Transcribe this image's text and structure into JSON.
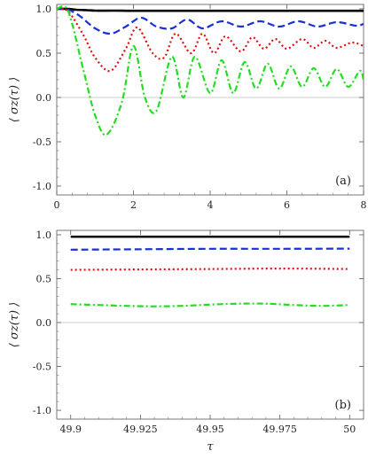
{
  "chart_data": [
    {
      "panel_label": "(a)",
      "type": "line",
      "ylabel": "⟨ σz(τ) ⟩",
      "xlabel": "",
      "xlim": [
        0,
        8
      ],
      "ylim": [
        -1.1,
        1.05
      ],
      "xticks": [
        0,
        2,
        4,
        6,
        8
      ],
      "xtick_labels": [
        "0",
        "2",
        "4",
        "6",
        "8"
      ],
      "yticks": [
        1.0,
        0.5,
        0.0,
        -0.5,
        -1.0
      ],
      "ytick_labels": [
        "1.0",
        "0.5",
        "0.0",
        "-0.5",
        "-1.0"
      ],
      "baseline_y": 0,
      "series": [
        {
          "color": "#000000",
          "style": "solid",
          "x": [
            0,
            0.3,
            0.5,
            0.8,
            1.0,
            1.5,
            2.0,
            3.0,
            4.0,
            5.0,
            6.0,
            7.0,
            8.0
          ],
          "y": [
            1.0,
            1.0,
            0.99,
            0.985,
            0.98,
            0.98,
            0.978,
            0.978,
            0.978,
            0.978,
            0.978,
            0.978,
            0.978
          ]
        },
        {
          "color": "#1a2fd6",
          "style": "dashed",
          "x": [
            0,
            0.3,
            0.6,
            1.0,
            1.4,
            1.8,
            2.2,
            2.6,
            3.0,
            3.4,
            3.8,
            4.3,
            4.8,
            5.3,
            5.8,
            6.3,
            6.8,
            7.3,
            7.8,
            8.0
          ],
          "y": [
            1.0,
            0.99,
            0.92,
            0.78,
            0.72,
            0.8,
            0.9,
            0.8,
            0.78,
            0.88,
            0.78,
            0.86,
            0.8,
            0.86,
            0.8,
            0.86,
            0.8,
            0.85,
            0.81,
            0.83
          ]
        },
        {
          "color": "#e01010",
          "style": "dotted",
          "x": [
            0,
            0.3,
            0.7,
            1.0,
            1.4,
            1.8,
            2.1,
            2.5,
            2.8,
            3.1,
            3.5,
            3.8,
            4.1,
            4.4,
            4.8,
            5.1,
            5.4,
            5.7,
            6.0,
            6.4,
            6.7,
            7.0,
            7.3,
            7.7,
            8.0
          ],
          "y": [
            1.0,
            0.97,
            0.7,
            0.45,
            0.3,
            0.55,
            0.79,
            0.5,
            0.45,
            0.72,
            0.5,
            0.72,
            0.5,
            0.69,
            0.52,
            0.68,
            0.55,
            0.66,
            0.55,
            0.66,
            0.56,
            0.64,
            0.56,
            0.62,
            0.58
          ]
        },
        {
          "color": "#22dd22",
          "style": "dashdot",
          "x": [
            0,
            0.3,
            0.7,
            1.0,
            1.3,
            1.7,
            2.0,
            2.3,
            2.6,
            3.0,
            3.3,
            3.6,
            4.0,
            4.3,
            4.6,
            4.9,
            5.2,
            5.5,
            5.8,
            6.1,
            6.4,
            6.7,
            7.0,
            7.3,
            7.6,
            7.9,
            8.0
          ],
          "y": [
            1.0,
            0.97,
            0.3,
            -0.2,
            -0.42,
            -0.05,
            0.58,
            0.0,
            -0.15,
            0.46,
            0.0,
            0.46,
            0.05,
            0.42,
            0.05,
            0.4,
            0.1,
            0.38,
            0.1,
            0.35,
            0.12,
            0.33,
            0.12,
            0.32,
            0.12,
            0.3,
            0.2
          ]
        }
      ]
    },
    {
      "panel_label": "(b)",
      "type": "line",
      "ylabel": "⟨ σz(τ) ⟩",
      "xlabel": "τ",
      "xlim": [
        49.895,
        50.005
      ],
      "ylim": [
        -1.1,
        1.05
      ],
      "xticks": [
        49.9,
        49.925,
        49.95,
        49.975,
        50.0
      ],
      "xtick_labels": [
        "49.9",
        "49.925",
        "49.95",
        "49.975",
        "50"
      ],
      "yticks": [
        1.0,
        0.5,
        0.0,
        -0.5,
        -1.0
      ],
      "ytick_labels": [
        "1.0",
        "0.5",
        "0.0",
        "-0.5",
        "-1.0"
      ],
      "baseline_y": 0,
      "series": [
        {
          "color": "#000000",
          "style": "solid",
          "x": [
            49.9,
            49.925,
            49.95,
            49.975,
            50.0
          ],
          "y": [
            0.978,
            0.978,
            0.978,
            0.978,
            0.978
          ]
        },
        {
          "color": "#1a2fd6",
          "style": "dashed",
          "x": [
            49.9,
            49.925,
            49.95,
            49.975,
            50.0
          ],
          "y": [
            0.83,
            0.835,
            0.84,
            0.84,
            0.842
          ]
        },
        {
          "color": "#e01010",
          "style": "dotted",
          "x": [
            49.9,
            49.925,
            49.95,
            49.975,
            50.0
          ],
          "y": [
            0.6,
            0.605,
            0.61,
            0.615,
            0.61
          ]
        },
        {
          "color": "#22dd22",
          "style": "dashdot",
          "x": [
            49.9,
            49.91,
            49.92,
            49.93,
            49.94,
            49.95,
            49.96,
            49.97,
            49.98,
            49.99,
            50.0
          ],
          "y": [
            0.21,
            0.2,
            0.19,
            0.185,
            0.19,
            0.205,
            0.215,
            0.215,
            0.2,
            0.19,
            0.2
          ]
        }
      ]
    }
  ]
}
